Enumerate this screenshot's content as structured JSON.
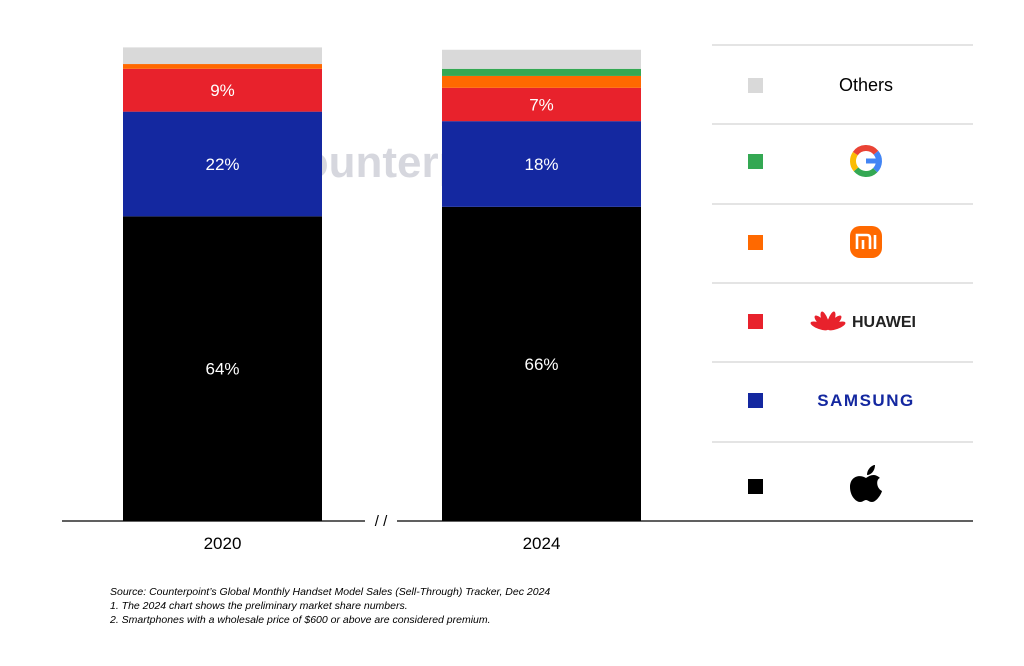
{
  "chart_data": {
    "type": "bar",
    "stacked": true,
    "categories": [
      "2020",
      "2024"
    ],
    "series": [
      {
        "name": "Apple",
        "color": "#000000",
        "values": [
          64,
          66
        ],
        "labels": [
          "64%",
          "66%"
        ],
        "icon": "apple-icon"
      },
      {
        "name": "Samsung",
        "color": "#1428a0",
        "values": [
          22,
          18
        ],
        "labels": [
          "22%",
          "18%"
        ],
        "icon": "samsung-logo"
      },
      {
        "name": "Huawei",
        "color": "#e8222c",
        "values": [
          9,
          7
        ],
        "labels": [
          "9%",
          "7%"
        ],
        "icon": "huawei-logo"
      },
      {
        "name": "Xiaomi",
        "color": "#ff6900",
        "values": [
          1,
          2.5
        ],
        "labels": [
          "",
          ""
        ],
        "icon": "xiaomi-logo"
      },
      {
        "name": "Google",
        "color": "#34a853",
        "values": [
          0,
          1.5
        ],
        "labels": [
          "",
          ""
        ],
        "icon": "google-logo"
      },
      {
        "name": "Others",
        "color": "#d9d9d9",
        "values": [
          3.5,
          4
        ],
        "labels": [
          "",
          ""
        ],
        "icon": ""
      }
    ],
    "ylim": [
      0,
      100
    ],
    "axis_break": "/ /",
    "legend": {
      "placement": "right",
      "items": [
        {
          "key": "others",
          "color": "#d9d9d9",
          "label": "Others"
        },
        {
          "key": "google",
          "color": "#34a853",
          "label": ""
        },
        {
          "key": "xiaomi",
          "color": "#ff6900",
          "label": ""
        },
        {
          "key": "huawei",
          "color": "#e8222c",
          "label": "HUAWEI"
        },
        {
          "key": "samsung",
          "color": "#1428a0",
          "label": "SAMSUNG"
        },
        {
          "key": "apple",
          "color": "#000000",
          "label": ""
        }
      ]
    },
    "watermark": "Counterpoint"
  },
  "footnotes": {
    "source": "Source: Counterpoint’s Global Monthly Handset Model Sales (Sell-Through) Tracker, Dec 2024",
    "note1": "1. The 2024 chart shows the preliminary market share numbers.",
    "note2": "2. Smartphones with a wholesale price of $600 or above are considered premium."
  }
}
